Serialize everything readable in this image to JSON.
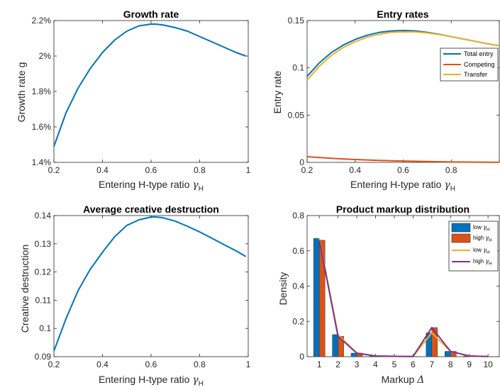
{
  "figure": {
    "panels": [
      {
        "title": "Growth rate",
        "xlabel_main": "Entering H-type ratio ",
        "xlabel_sym": "γ",
        "xlabel_sub": "H",
        "ylabel": "Growth rate g",
        "xticks": [
          "0.2",
          "0.4",
          "0.6",
          "0.8",
          "1"
        ],
        "yticks": [
          "1.4%",
          "1.6%",
          "1.8%",
          "2%",
          "2.2%"
        ]
      },
      {
        "title": "Entry rates",
        "xlabel_main": "Entering H-type ratio ",
        "xlabel_sym": "γ",
        "xlabel_sub": "H",
        "ylabel": "Entry rate",
        "xticks": [
          "0.2",
          "0.4",
          "0.6",
          "0.8",
          "1"
        ],
        "yticks": [
          "0",
          "0.05",
          "0.1",
          "0.15"
        ],
        "legend": [
          "Total entry",
          "Competing",
          "Transfer"
        ]
      },
      {
        "title": "Average creative destruction",
        "xlabel_main": "Entering H-type ratio ",
        "xlabel_sym": "γ",
        "xlabel_sub": "H",
        "ylabel": "Creative destruction",
        "xticks": [
          "0.2",
          "0.4",
          "0.6",
          "0.8",
          "1"
        ],
        "yticks": [
          "0.09",
          "0.1",
          "0.11",
          "0.12",
          "0.13",
          "0.14"
        ]
      },
      {
        "title": "Product markup distribution",
        "xlabel_main": "Markup ",
        "xlabel_sym": "Δ",
        "xlabel_sub": "",
        "ylabel": "Density",
        "xticks": [
          "1",
          "2",
          "3",
          "4",
          "5",
          "6",
          "7",
          "8",
          "9",
          "10"
        ],
        "yticks": [
          "0",
          "0.2",
          "0.4",
          "0.6",
          "0.8"
        ],
        "legend": [
          {
            "main": "low ",
            "sym": "γ",
            "sub": "H"
          },
          {
            "main": "high ",
            "sym": "γ",
            "sub": "H"
          },
          {
            "main": "low ",
            "sym": "γ",
            "sub": "H"
          },
          {
            "main": "high ",
            "sym": "γ",
            "sub": "H"
          }
        ]
      }
    ]
  },
  "colors": {
    "blue": "#0072BD",
    "orange": "#D95319",
    "yellow": "#EDB120",
    "purple": "#7E2F8E",
    "axis": "#262626",
    "bar_edge": "#333333"
  },
  "chart_data": [
    {
      "type": "line",
      "title": "Growth rate",
      "xlabel": "Entering H-type ratio γH",
      "ylabel": "Growth rate g",
      "xlim": [
        0.2,
        1
      ],
      "ylim": [
        1.4,
        2.2
      ],
      "y_unit": "%",
      "grid": false,
      "series": [
        {
          "x": [
            0.2,
            0.25,
            0.3,
            0.35,
            0.4,
            0.45,
            0.5,
            0.55,
            0.6,
            0.62,
            0.65,
            0.7,
            0.75,
            0.8,
            0.85,
            0.9,
            0.95,
            0.99
          ],
          "values": [
            1.49,
            1.68,
            1.82,
            1.93,
            2.02,
            2.09,
            2.14,
            2.17,
            2.18,
            2.18,
            2.175,
            2.16,
            2.14,
            2.11,
            2.08,
            2.05,
            2.02,
            2.0
          ]
        }
      ]
    },
    {
      "type": "line",
      "title": "Entry rates",
      "xlabel": "Entering H-type ratio γH",
      "ylabel": "Entry rate",
      "xlim": [
        0.2,
        1
      ],
      "ylim": [
        0,
        0.15
      ],
      "grid": false,
      "legend_position": "right",
      "series": [
        {
          "name": "Total entry",
          "x": [
            0.2,
            0.25,
            0.3,
            0.35,
            0.4,
            0.45,
            0.5,
            0.55,
            0.6,
            0.65,
            0.7,
            0.75,
            0.8,
            0.85,
            0.9,
            0.95,
            1.0
          ],
          "values": [
            0.091,
            0.105,
            0.116,
            0.124,
            0.13,
            0.1345,
            0.1375,
            0.139,
            0.1395,
            0.139,
            0.1375,
            0.1355,
            0.133,
            0.1305,
            0.128,
            0.1255,
            0.1235
          ]
        },
        {
          "name": "Competing",
          "x": [
            0.2,
            0.3,
            0.4,
            0.5,
            0.6,
            0.7,
            0.8,
            0.9,
            1.0
          ],
          "values": [
            0.006,
            0.0043,
            0.003,
            0.0021,
            0.0014,
            0.0009,
            0.0005,
            0.0003,
            0.0001
          ]
        },
        {
          "name": "Transfer",
          "x": [
            0.2,
            0.25,
            0.3,
            0.35,
            0.4,
            0.45,
            0.5,
            0.55,
            0.6,
            0.65,
            0.7,
            0.75,
            0.8,
            0.85,
            0.9,
            0.95,
            1.0
          ],
          "values": [
            0.087,
            0.1015,
            0.113,
            0.1215,
            0.1275,
            0.1325,
            0.1355,
            0.1375,
            0.138,
            0.138,
            0.137,
            0.1352,
            0.133,
            0.1305,
            0.128,
            0.1255,
            0.1235
          ]
        }
      ]
    },
    {
      "type": "line",
      "title": "Average creative destruction",
      "xlabel": "Entering H-type ratio γH",
      "ylabel": "Creative destruction",
      "xlim": [
        0.2,
        1
      ],
      "ylim": [
        0.09,
        0.14
      ],
      "grid": false,
      "series": [
        {
          "x": [
            0.2,
            0.25,
            0.3,
            0.35,
            0.4,
            0.45,
            0.5,
            0.55,
            0.6,
            0.62,
            0.65,
            0.7,
            0.75,
            0.8,
            0.85,
            0.9,
            0.95,
            0.99
          ],
          "values": [
            0.092,
            0.1035,
            0.1135,
            0.121,
            0.127,
            0.1325,
            0.1365,
            0.1385,
            0.1395,
            0.1395,
            0.1392,
            0.138,
            0.1362,
            0.1342,
            0.132,
            0.1297,
            0.1275,
            0.1255
          ]
        }
      ]
    },
    {
      "type": "bar",
      "title": "Product markup distribution",
      "xlabel": "Markup Δ",
      "ylabel": "Density",
      "ylim": [
        0,
        0.8
      ],
      "grid": false,
      "legend_position": "top-right",
      "categories": [
        "1",
        "2",
        "3",
        "4",
        "5",
        "6",
        "7",
        "8",
        "9",
        "10"
      ],
      "series": [
        {
          "name": "low γH",
          "kind": "bar",
          "values": [
            0.67,
            0.125,
            0.02,
            0.004,
            0.002,
            0.001,
            0.135,
            0.03,
            0.003,
            0.001
          ]
        },
        {
          "name": "high γH",
          "kind": "bar",
          "values": [
            0.66,
            0.115,
            0.02,
            0.004,
            0.002,
            0.001,
            0.165,
            0.03,
            0.004,
            0.001
          ]
        },
        {
          "name": "low γH",
          "kind": "line",
          "values": [
            0.67,
            0.125,
            0.02,
            0.004,
            0.002,
            0.001,
            0.135,
            0.03,
            0.003,
            0.001
          ]
        },
        {
          "name": "high γH",
          "kind": "line",
          "values": [
            0.66,
            0.115,
            0.02,
            0.004,
            0.002,
            0.001,
            0.165,
            0.03,
            0.004,
            0.001
          ]
        }
      ]
    }
  ]
}
